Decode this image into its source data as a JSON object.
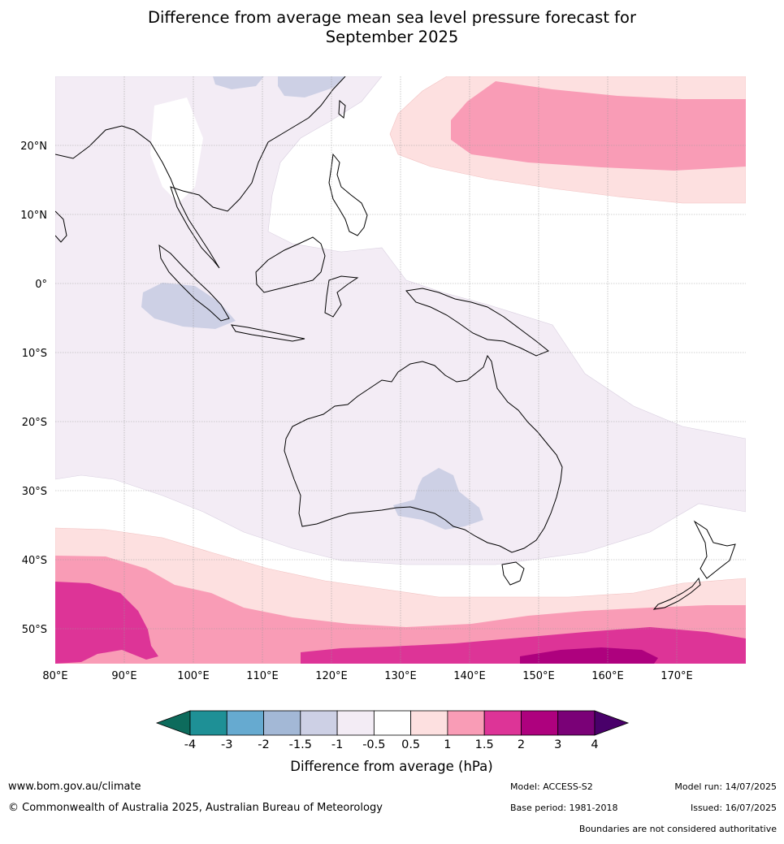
{
  "title_line1": "Difference from average mean sea level pressure forecast for",
  "title_line2": "September 2025",
  "lat_labels": [
    "20°N",
    "10°N",
    "0°",
    "10°S",
    "20°S",
    "30°S",
    "40°S",
    "50°S"
  ],
  "lon_labels": [
    "80°E",
    "90°E",
    "100°E",
    "110°E",
    "120°E",
    "130°E",
    "140°E",
    "150°E",
    "160°E",
    "170°E"
  ],
  "colorbar": {
    "label": "Difference from average (hPa)",
    "ticks": [
      "-4",
      "-3",
      "-2",
      "-1.5",
      "-1",
      "-0.5",
      "0.5",
      "1",
      "1.5",
      "2",
      "3",
      "4"
    ],
    "colors": [
      "#0d6b5c",
      "#1e9096",
      "#66aad0",
      "#a3b8d6",
      "#cdd0e5",
      "#f3ecf5",
      "#ffffff",
      "#fde0e0",
      "#f99cb6",
      "#dd3497",
      "#ae017e",
      "#7a0177",
      "#49006a"
    ]
  },
  "footer": {
    "website": "www.bom.gov.au/climate",
    "copyright": "© Commonwealth of Australia 2025, Australian Bureau of Meteorology",
    "model": "Model: ACCESS-S2",
    "base_period": "Base period: 1981-2018",
    "model_run": "Model run: 14/07/2025",
    "issued": "Issued: 16/07/2025",
    "disclaimer": "Boundaries are not considered authoritative"
  }
}
